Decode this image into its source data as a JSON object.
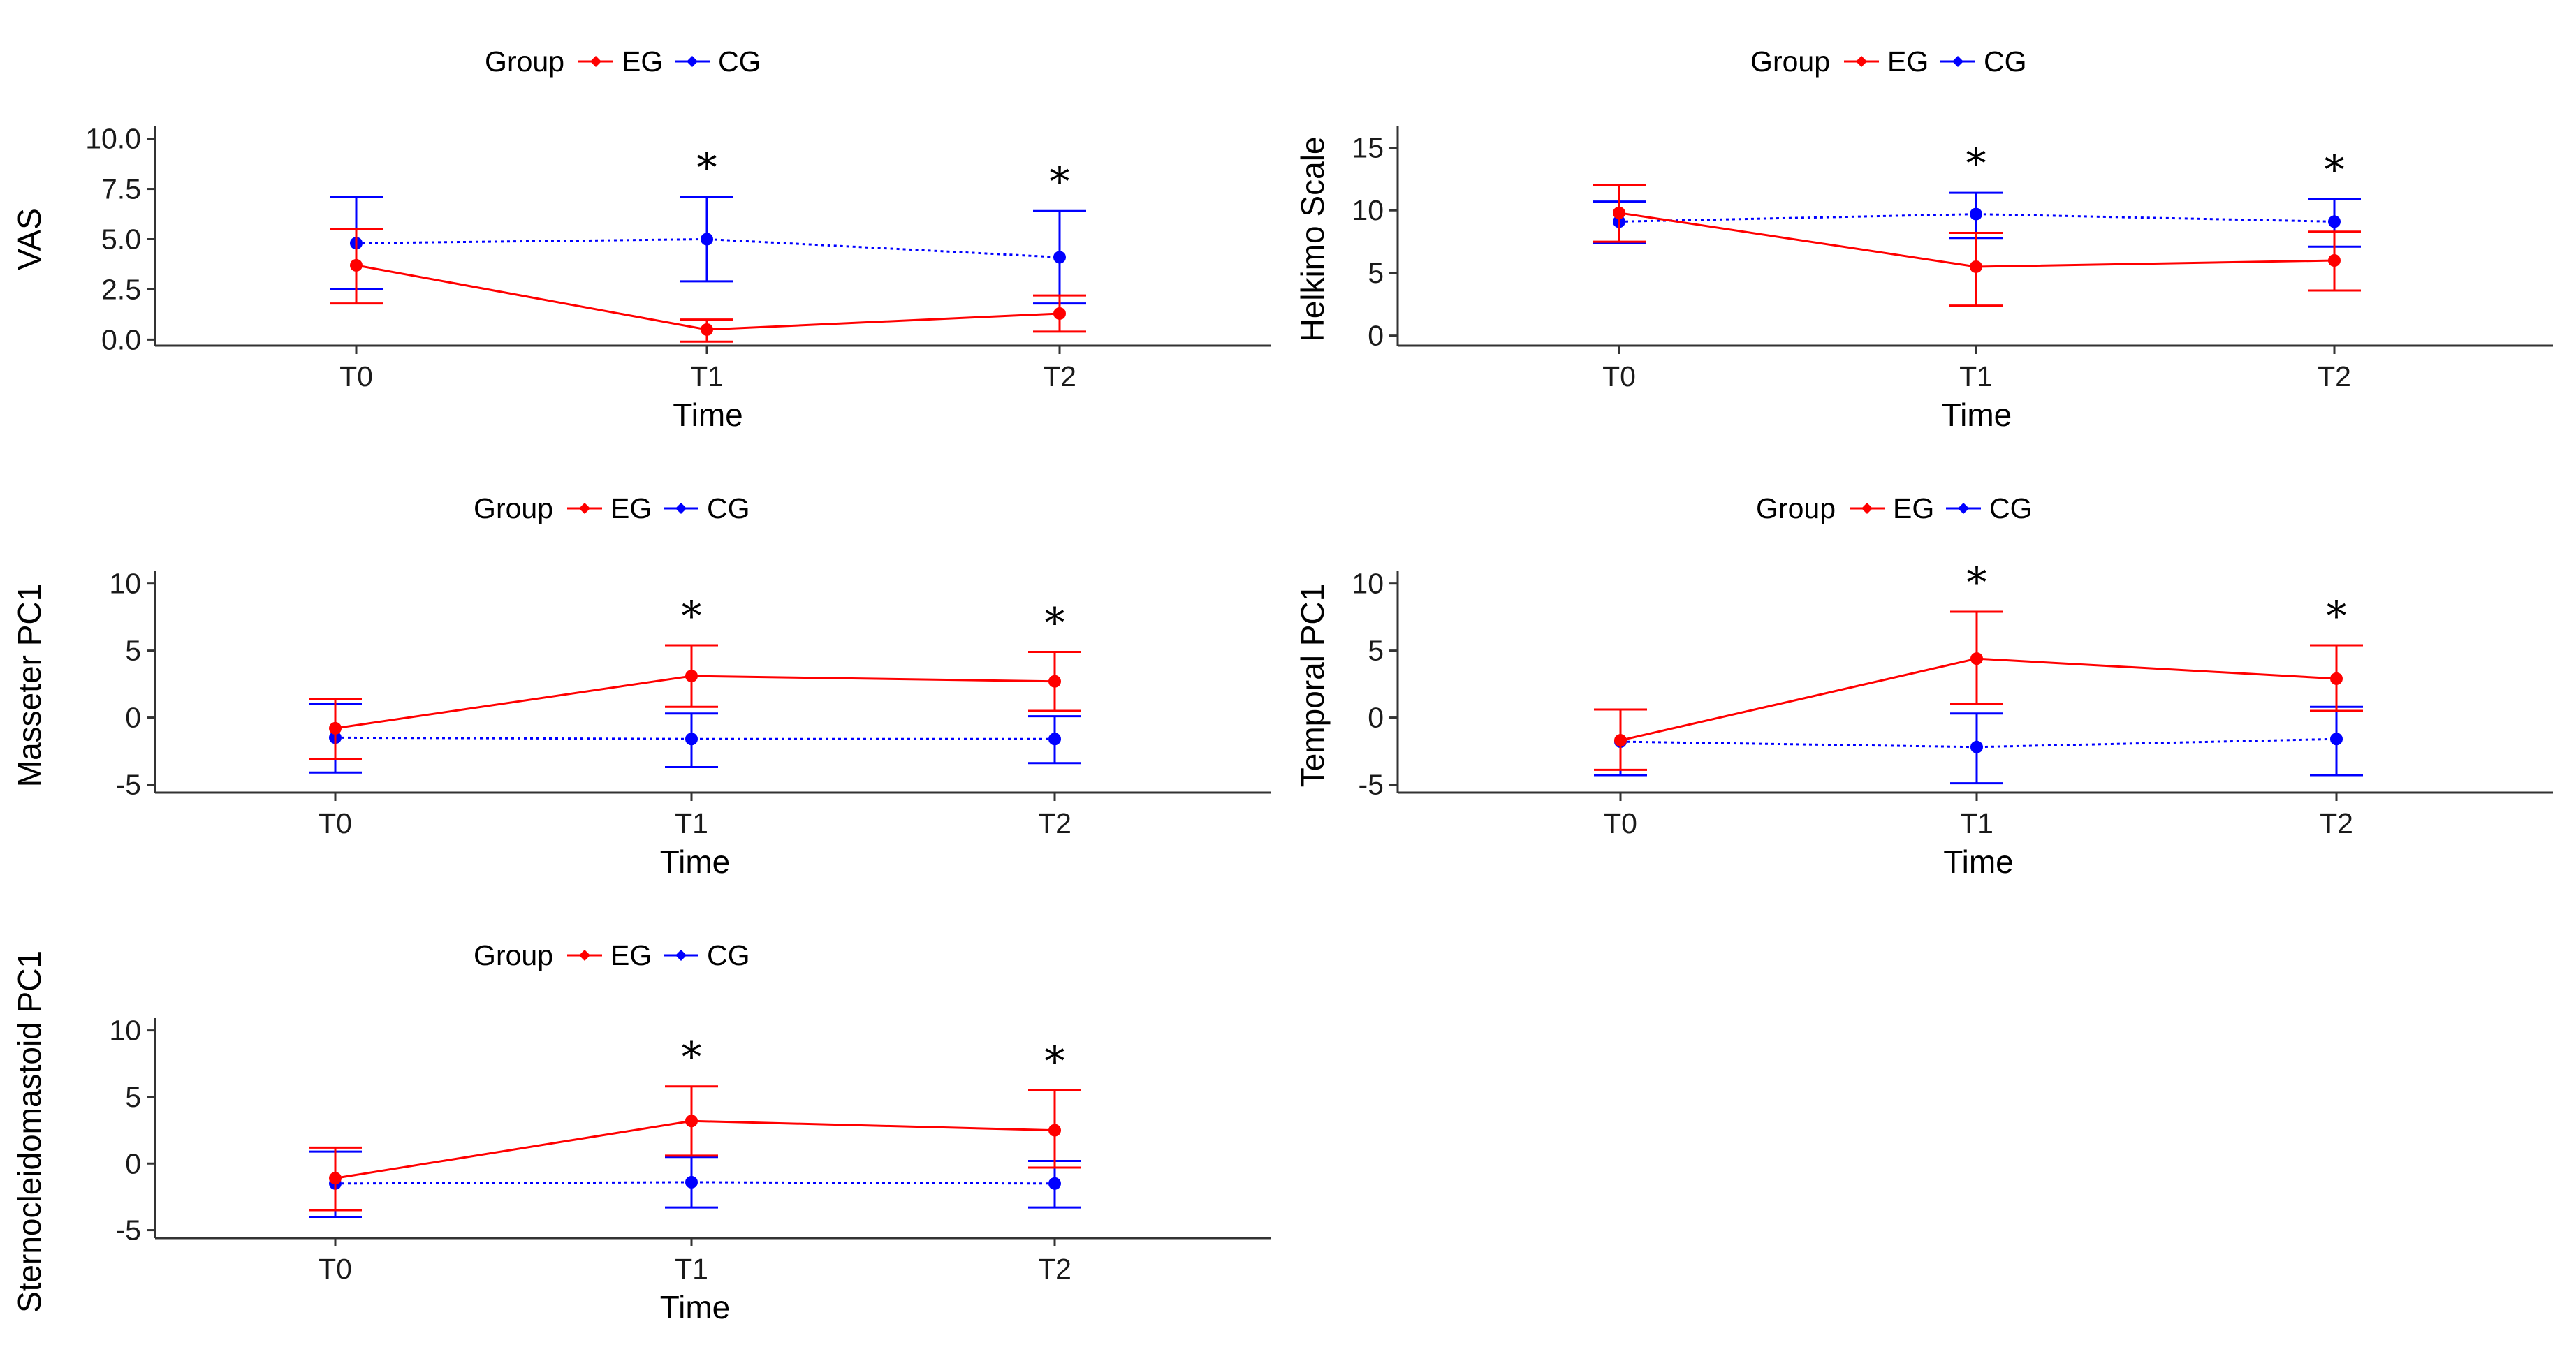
{
  "colors": {
    "EG": "#ff0000",
    "CG": "#0000ff",
    "axis": "#333333"
  },
  "chart_data": [
    {
      "type": "line",
      "ylabel": "VAS",
      "xlabel": "Time",
      "categories": [
        "T0",
        "T1",
        "T2"
      ],
      "ylim": [
        -0.3,
        10.3
      ],
      "yticks": [
        0.0,
        2.5,
        5.0,
        7.5,
        10.0
      ],
      "ytick_labels": [
        "0.0",
        "2.5",
        "5.0",
        "7.5",
        "10.0"
      ],
      "legend": {
        "title": "Group",
        "entries": [
          "EG",
          "CG"
        ],
        "position": "top"
      },
      "significant": [
        "T1",
        "T2"
      ],
      "significance_label": "*",
      "series": [
        {
          "name": "EG",
          "values": [
            3.7,
            0.5,
            1.3
          ],
          "lower": [
            1.8,
            -0.1,
            0.4
          ],
          "upper": [
            5.5,
            1.0,
            2.2
          ]
        },
        {
          "name": "CG",
          "values": [
            4.8,
            5.0,
            4.1
          ],
          "lower": [
            2.5,
            2.9,
            1.8
          ],
          "upper": [
            7.1,
            7.1,
            6.4
          ]
        }
      ]
    },
    {
      "type": "line",
      "ylabel": "Helkimo Scale",
      "xlabel": "Time",
      "categories": [
        "T0",
        "T1",
        "T2"
      ],
      "ylim": [
        -0.8,
        16.2
      ],
      "yticks": [
        0,
        5,
        10,
        15
      ],
      "ytick_labels": [
        "0",
        "5",
        "10",
        "15"
      ],
      "legend": {
        "title": "Group",
        "entries": [
          "EG",
          "CG"
        ],
        "position": "top"
      },
      "significant": [
        "T1",
        "T2"
      ],
      "significance_label": "*",
      "series": [
        {
          "name": "EG",
          "values": [
            9.8,
            5.5,
            6.0
          ],
          "lower": [
            7.5,
            2.4,
            3.6
          ],
          "upper": [
            12.0,
            8.2,
            8.3
          ]
        },
        {
          "name": "CG",
          "values": [
            9.1,
            9.7,
            9.1
          ],
          "lower": [
            7.4,
            7.8,
            7.1
          ],
          "upper": [
            10.7,
            11.4,
            10.9
          ]
        }
      ]
    },
    {
      "type": "line",
      "ylabel": "Masseter PC1",
      "xlabel": "Time",
      "categories": [
        "T0",
        "T1",
        "T2"
      ],
      "ylim": [
        -5.6,
        10.4
      ],
      "yticks": [
        -5,
        0,
        5,
        10
      ],
      "ytick_labels": [
        "-5",
        "0",
        "5",
        "10"
      ],
      "legend": {
        "title": "Group",
        "entries": [
          "EG",
          "CG"
        ],
        "position": "top"
      },
      "significant": [
        "T1",
        "T2"
      ],
      "significance_label": "*",
      "series": [
        {
          "name": "EG",
          "values": [
            -0.8,
            3.1,
            2.7
          ],
          "lower": [
            -3.1,
            0.8,
            0.5
          ],
          "upper": [
            1.4,
            5.4,
            4.9
          ]
        },
        {
          "name": "CG",
          "values": [
            -1.5,
            -1.6,
            -1.6
          ],
          "lower": [
            -4.1,
            -3.7,
            -3.4
          ],
          "upper": [
            1.0,
            0.3,
            0.1
          ]
        }
      ]
    },
    {
      "type": "line",
      "ylabel": "Temporal PC1",
      "xlabel": "Time",
      "categories": [
        "T0",
        "T1",
        "T2"
      ],
      "ylim": [
        -5.6,
        10.4
      ],
      "yticks": [
        -5,
        0,
        5,
        10
      ],
      "ytick_labels": [
        "-5",
        "0",
        "5",
        "10"
      ],
      "legend": {
        "title": "Group",
        "entries": [
          "EG",
          "CG"
        ],
        "position": "top"
      },
      "significant": [
        "T1",
        "T2"
      ],
      "significance_label": "*",
      "series": [
        {
          "name": "EG",
          "values": [
            -1.7,
            4.4,
            2.9
          ],
          "lower": [
            -3.9,
            1.0,
            0.5
          ],
          "upper": [
            0.6,
            7.9,
            5.4
          ]
        },
        {
          "name": "CG",
          "values": [
            -1.8,
            -2.2,
            -1.6
          ],
          "lower": [
            -4.3,
            -4.9,
            -4.3
          ],
          "upper": [
            0.6,
            0.3,
            0.8
          ]
        }
      ]
    },
    {
      "type": "line",
      "ylabel": "Sternocleidomastoid PC1",
      "xlabel": "Time",
      "categories": [
        "T0",
        "T1",
        "T2"
      ],
      "ylim": [
        -5.6,
        10.4
      ],
      "yticks": [
        -5,
        0,
        5,
        10
      ],
      "ytick_labels": [
        "-5",
        "0",
        "5",
        "10"
      ],
      "legend": {
        "title": "Group",
        "entries": [
          "EG",
          "CG"
        ],
        "position": "top"
      },
      "significant": [
        "T1",
        "T2"
      ],
      "significance_label": "*",
      "series": [
        {
          "name": "EG",
          "values": [
            -1.1,
            3.2,
            2.5
          ],
          "lower": [
            -3.5,
            0.6,
            -0.3
          ],
          "upper": [
            1.2,
            5.8,
            5.5
          ]
        },
        {
          "name": "CG",
          "values": [
            -1.5,
            -1.4,
            -1.5
          ],
          "lower": [
            -4.0,
            -3.3,
            -3.3
          ],
          "upper": [
            0.9,
            0.5,
            0.2
          ]
        }
      ]
    }
  ]
}
